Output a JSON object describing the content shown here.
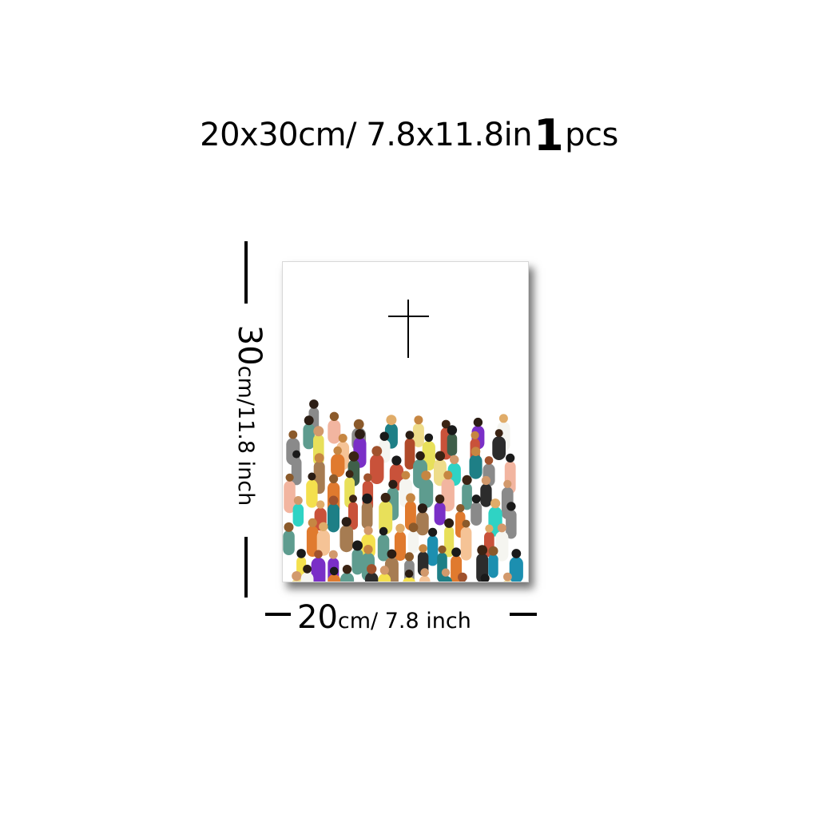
{
  "title": {
    "size_text": "20x30cm/ 7.8x11.8in",
    "count": "1",
    "unit": "pcs"
  },
  "height_label": {
    "value": "30",
    "unit_text": "cm/11.8 inch"
  },
  "width_label": {
    "value": "20",
    "unit_text": "cm/ 7.8 inch"
  },
  "poster": {
    "icon": "cross-icon",
    "illustration": "crowd-of-people"
  }
}
